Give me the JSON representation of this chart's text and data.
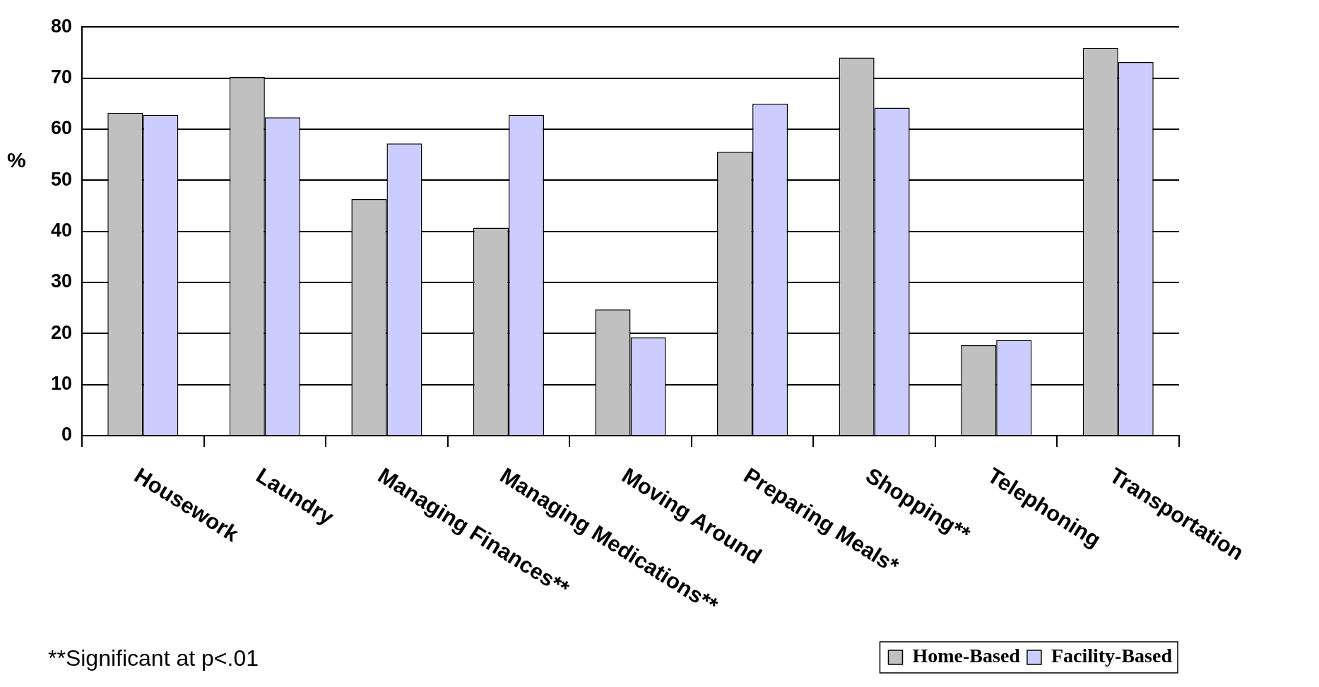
{
  "chart_data": {
    "type": "bar",
    "ylabel": "%",
    "categories": [
      "Housework",
      "Laundry",
      "Managing Finances**",
      "Managing Medications**",
      "Moving Around",
      "Preparing Meals*",
      "Shopping**",
      "Telephoning",
      "Transportation"
    ],
    "series": [
      {
        "name": "Home-Based",
        "color": "#c0c0c0",
        "values": [
          63.2,
          70.2,
          46.3,
          40.7,
          24.7,
          55.6,
          74,
          17.7,
          75.9
        ]
      },
      {
        "name": "Facility-Based",
        "color": "#ccccff",
        "values": [
          62.8,
          62.3,
          57.2,
          62.8,
          19.2,
          65,
          64.2,
          18.7,
          73.1
        ]
      }
    ],
    "ylim": [
      0,
      80
    ],
    "yticks": [
      0,
      10,
      20,
      30,
      40,
      50,
      60,
      70,
      80
    ],
    "grid": "y",
    "legend": "bottom right",
    "annotations": [
      "**Significant at p<.01"
    ]
  }
}
